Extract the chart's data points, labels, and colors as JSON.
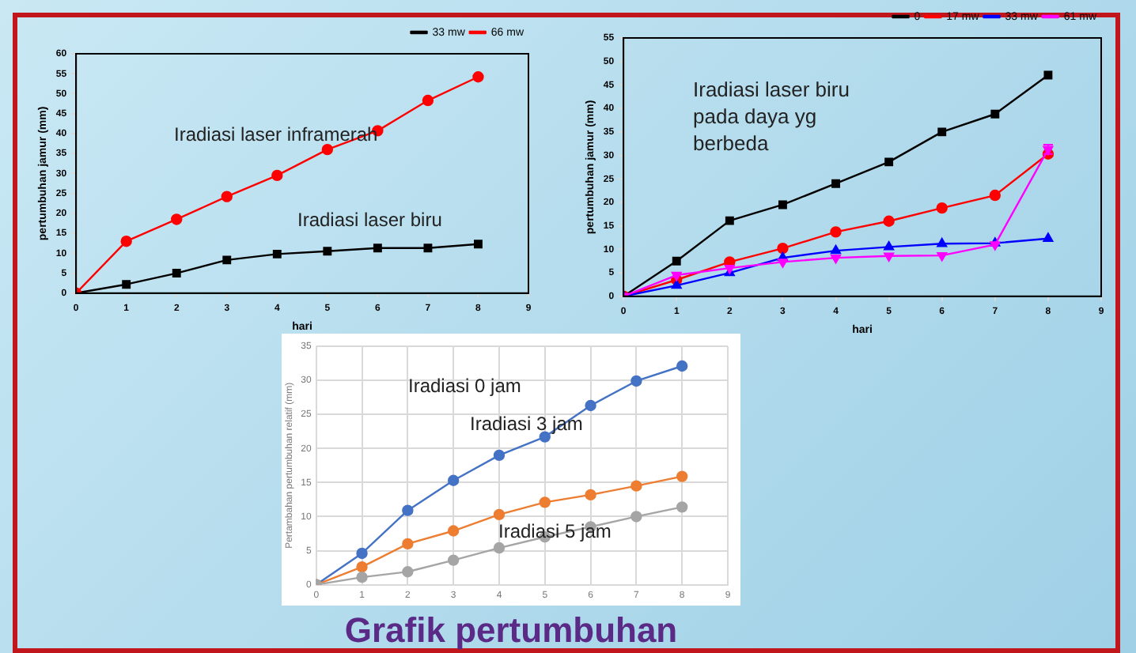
{
  "chart_data": [
    {
      "type": "line",
      "xlabel": "hari",
      "ylabel": "pertumbuhan jamur (mm)",
      "x": [
        0,
        1,
        2,
        3,
        4,
        5,
        6,
        7,
        8
      ],
      "xlim": [
        0,
        9
      ],
      "xticks": [
        0,
        1,
        2,
        3,
        4,
        5,
        6,
        7,
        8,
        9
      ],
      "ylim": [
        0,
        60
      ],
      "yticks": [
        0,
        5,
        10,
        15,
        20,
        25,
        30,
        35,
        40,
        45,
        50,
        55,
        60
      ],
      "grid": false,
      "legend": "top right",
      "series": [
        {
          "name": "33 mw",
          "color": "#000000",
          "marker": "square",
          "values": [
            0,
            2.2,
            5,
            8.3,
            9.8,
            10.5,
            11.3,
            11.3,
            12.3
          ]
        },
        {
          "name": "66 mw",
          "color": "#ff0000",
          "marker": "circle",
          "values": [
            0,
            13,
            18.5,
            24.2,
            29.5,
            36,
            40.7,
            48.3,
            54.2
          ]
        }
      ],
      "annotations": [
        "Iradiasi laser inframerah",
        "Iradiasi laser biru"
      ]
    },
    {
      "type": "line",
      "xlabel": "hari",
      "ylabel": "pertumbuhan jamur (mm)",
      "x": [
        0,
        1,
        2,
        3,
        4,
        5,
        6,
        7,
        8
      ],
      "xlim": [
        0,
        9
      ],
      "xticks": [
        0,
        1,
        2,
        3,
        4,
        5,
        6,
        7,
        8,
        9
      ],
      "ylim": [
        0,
        55
      ],
      "yticks": [
        0,
        5,
        10,
        15,
        20,
        25,
        30,
        35,
        40,
        45,
        50,
        55
      ],
      "grid": false,
      "legend": "top right",
      "series": [
        {
          "name": "0",
          "color": "#000000",
          "marker": "square",
          "values": [
            0,
            7.5,
            16.1,
            19.5,
            24,
            28.6,
            35,
            38.8,
            47.1
          ]
        },
        {
          "name": "17 mw",
          "color": "#ff0000",
          "marker": "circle",
          "values": [
            0,
            3.5,
            7.3,
            10.2,
            13.7,
            16,
            18.8,
            21.5,
            30.3
          ]
        },
        {
          "name": "33 mw",
          "color": "#0000ff",
          "marker": "triangle",
          "values": [
            0,
            2.3,
            5,
            8.2,
            9.7,
            10.5,
            11.2,
            11.3,
            12.3
          ]
        },
        {
          "name": "61 mw",
          "color": "#ff00ff",
          "marker": "triangle-down",
          "values": [
            0,
            4.5,
            6,
            7.3,
            8.2,
            8.6,
            8.7,
            11,
            31.3
          ],
          "errors": [
            null,
            null,
            null,
            null,
            null,
            null,
            null,
            null,
            1
          ]
        }
      ],
      "annotations": [
        "Iradiasi laser biru pada daya yg berbeda"
      ]
    },
    {
      "type": "line",
      "ylabel": "Pertambahan pertumbuhan relatif (mm)",
      "x": [
        0,
        1,
        2,
        3,
        4,
        5,
        6,
        7,
        8
      ],
      "xlim": [
        0,
        9
      ],
      "xticks": [
        0,
        1,
        2,
        3,
        4,
        5,
        6,
        7,
        8,
        9
      ],
      "ylim": [
        0,
        35
      ],
      "yticks": [
        0,
        5,
        10,
        15,
        20,
        25,
        30,
        35
      ],
      "grid": true,
      "marker": "circle",
      "series": [
        {
          "color": "#4472c4",
          "values": [
            0,
            4.6,
            10.9,
            15.3,
            19,
            21.7,
            26.3,
            29.9,
            32.1
          ]
        },
        {
          "color": "#ed7d31",
          "values": [
            0,
            2.6,
            6,
            7.9,
            10.3,
            12.1,
            13.2,
            14.5,
            15.9
          ]
        },
        {
          "color": "#a5a5a5",
          "values": [
            0,
            1.1,
            1.9,
            3.6,
            5.4,
            7,
            8.5,
            10,
            11.4
          ]
        }
      ],
      "annotations": [
        "Iradiasi 0 jam",
        "Iradiasi 3 jam",
        "Iradiasi 5 jam",
        "Grafik pertumbuhan"
      ]
    }
  ]
}
